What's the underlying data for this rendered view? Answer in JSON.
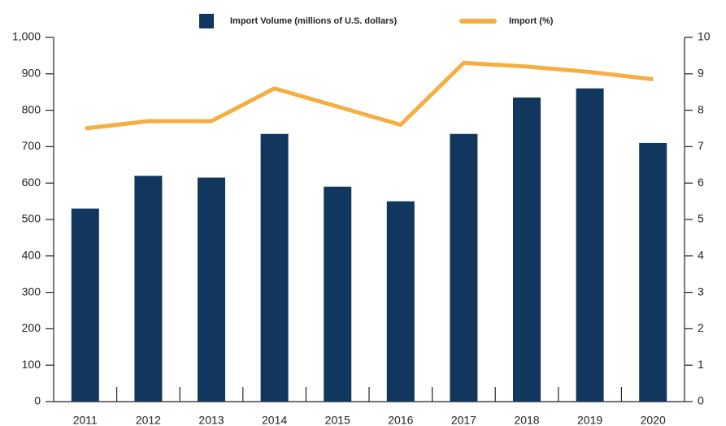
{
  "chart_data": {
    "type": "bar_line",
    "categories": [
      "2011",
      "2012",
      "2013",
      "2014",
      "2015",
      "2016",
      "2017",
      "2018",
      "2019",
      "2020"
    ],
    "series": [
      {
        "name": "Import Volume (millions of U.S. dollars)",
        "type": "bar",
        "color": "#12375f",
        "values": [
          530,
          620,
          615,
          735,
          590,
          550,
          735,
          835,
          860,
          710
        ]
      },
      {
        "name": "Import (%)",
        "type": "line",
        "axis": "y2",
        "color": "#f5ae41",
        "values": [
          7.5,
          7.7,
          7.7,
          8.6,
          8.1,
          7.6,
          9.3,
          9.2,
          9.05,
          8.85
        ]
      }
    ],
    "ylim": [
      0,
      1000
    ],
    "yticks": [
      0,
      100,
      200,
      300,
      400,
      500,
      600,
      700,
      800,
      900,
      {
        "value": 1000,
        "label": "1,000"
      }
    ],
    "y2lim": [
      0,
      10
    ],
    "y2ticks": [
      0,
      1,
      2,
      3,
      4,
      5,
      6,
      7,
      8,
      9,
      10
    ],
    "grid": false,
    "legend": "top"
  }
}
